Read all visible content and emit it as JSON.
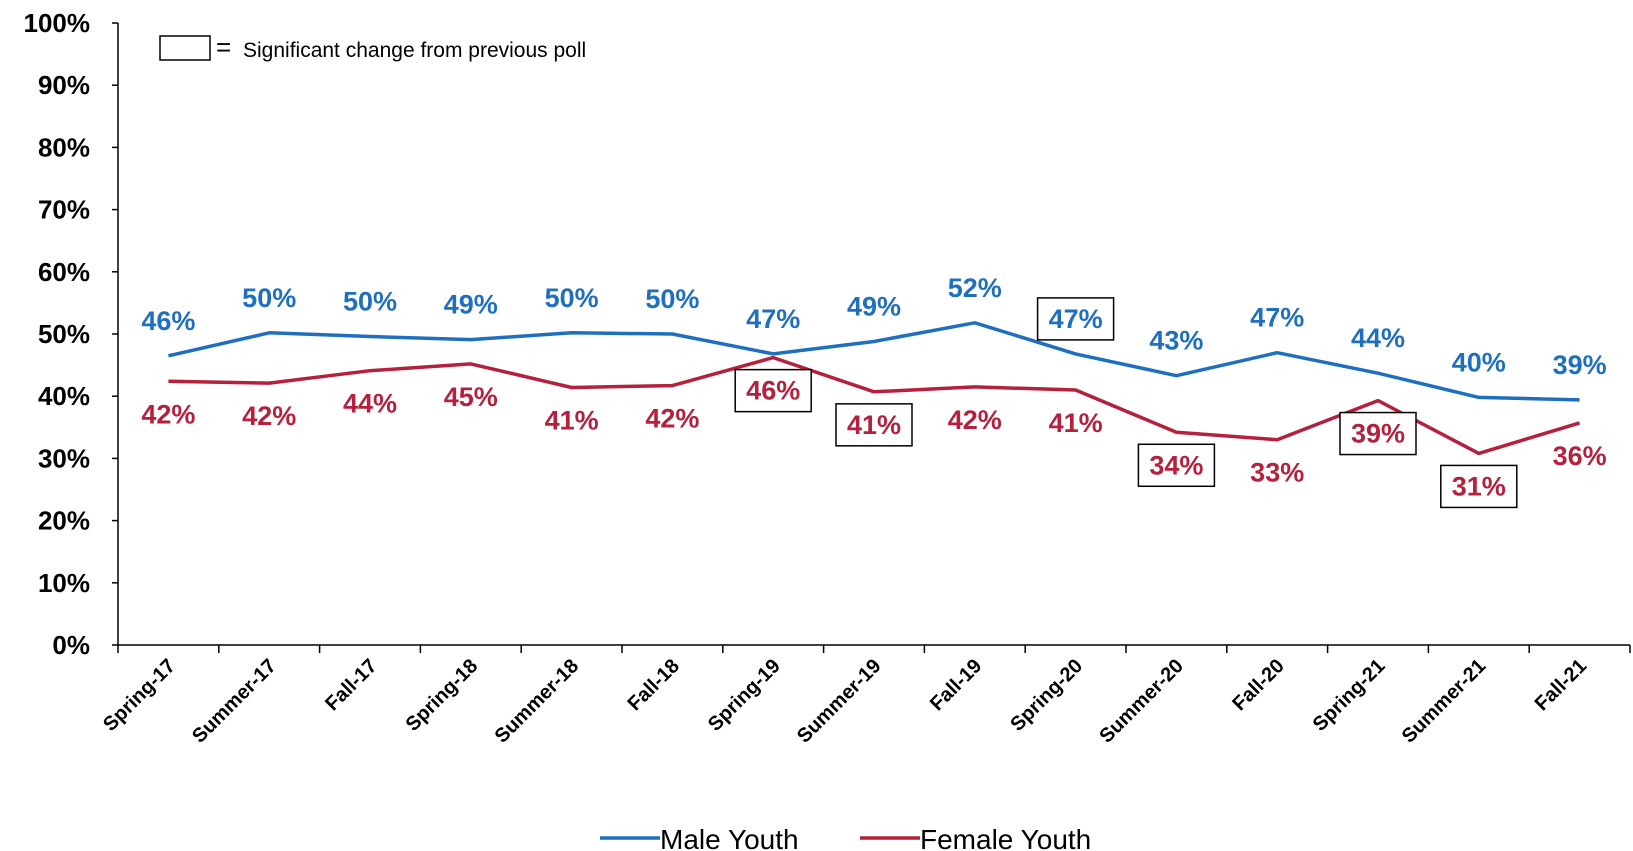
{
  "chart_data": {
    "type": "line",
    "categories": [
      "Spring-17",
      "Summer-17",
      "Fall-17",
      "Spring-18",
      "Summer-18",
      "Fall-18",
      "Spring-19",
      "Summer-19",
      "Fall-19",
      "Spring-20",
      "Summer-20",
      "Fall-20",
      "Spring-21",
      "Summer-21",
      "Fall-21"
    ],
    "ylim": [
      0,
      100
    ],
    "yticks": [
      "0%",
      "10%",
      "20%",
      "30%",
      "40%",
      "50%",
      "60%",
      "70%",
      "80%",
      "90%",
      "100%"
    ],
    "grid": false,
    "legend_position": "bottom",
    "note": {
      "symbol": "=",
      "text": "Significant change from previous poll"
    },
    "series": [
      {
        "name": "Male Youth",
        "color": "#1f6fbf",
        "values": [
          46.5,
          50.2,
          49.6,
          49.1,
          50.2,
          50.0,
          46.8,
          48.8,
          51.8,
          46.8,
          43.3,
          47.0,
          43.7,
          39.8,
          39.4
        ],
        "labels": [
          "46%",
          "50%",
          "50%",
          "49%",
          "50%",
          "50%",
          "47%",
          "49%",
          "52%",
          "47%",
          "43%",
          "47%",
          "44%",
          "40%",
          "39%"
        ],
        "significant": [
          false,
          false,
          false,
          false,
          false,
          false,
          false,
          false,
          false,
          true,
          false,
          false,
          false,
          false,
          false
        ]
      },
      {
        "name": "Female Youth",
        "color": "#b5203c",
        "values": [
          42.4,
          42.1,
          44.1,
          45.2,
          41.4,
          41.7,
          46.2,
          40.7,
          41.5,
          41.0,
          34.2,
          33.0,
          39.3,
          30.8,
          35.7
        ],
        "labels": [
          "42%",
          "42%",
          "44%",
          "45%",
          "41%",
          "42%",
          "46%",
          "41%",
          "42%",
          "41%",
          "34%",
          "33%",
          "39%",
          "31%",
          "36%"
        ],
        "significant": [
          false,
          false,
          false,
          false,
          false,
          false,
          true,
          true,
          false,
          false,
          true,
          false,
          true,
          true,
          false
        ]
      }
    ]
  }
}
